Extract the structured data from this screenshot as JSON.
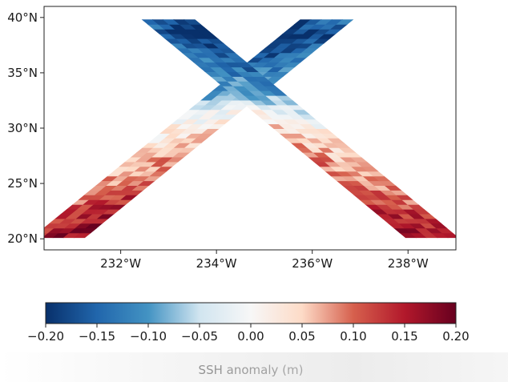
{
  "chart_data": [
    {
      "type": "heatmap",
      "title": "",
      "xlabel": "",
      "ylabel": "",
      "xlim": [
        230.4,
        239.0
      ],
      "ylim": [
        19.0,
        41.0
      ],
      "x_ticks": [
        {
          "value": 232,
          "label": "232°W"
        },
        {
          "value": 234,
          "label": "234°W"
        },
        {
          "value": 236,
          "label": "236°W"
        },
        {
          "value": 238,
          "label": "238°W"
        }
      ],
      "y_ticks": [
        {
          "value": 20,
          "label": "20°N"
        },
        {
          "value": 25,
          "label": "25°N"
        },
        {
          "value": 30,
          "label": "30°N"
        },
        {
          "value": 35,
          "label": "35°N"
        },
        {
          "value": 40,
          "label": "40°N"
        }
      ],
      "grid": false,
      "swaths": [
        {
          "start": [
            230.7,
            20.1
          ],
          "end": [
            236.3,
            39.8
          ],
          "half_width_deg": 0.55
        },
        {
          "start": [
            238.5,
            20.1
          ],
          "end": [
            233.0,
            39.8
          ],
          "half_width_deg": 0.55
        }
      ],
      "ssh_profile": [
        {
          "lat": 20,
          "value": 0.17
        },
        {
          "lat": 22,
          "value": 0.14
        },
        {
          "lat": 24,
          "value": 0.11
        },
        {
          "lat": 26,
          "value": 0.08
        },
        {
          "lat": 28,
          "value": 0.06
        },
        {
          "lat": 30,
          "value": 0.03
        },
        {
          "lat": 31.5,
          "value": -0.02
        },
        {
          "lat": 33,
          "value": -0.09
        },
        {
          "lat": 35,
          "value": -0.12
        },
        {
          "lat": 37,
          "value": -0.16
        },
        {
          "lat": 38.5,
          "value": -0.19
        },
        {
          "lat": 40,
          "value": -0.14
        }
      ]
    },
    {
      "type": "colorbar",
      "label": "SSH anomaly (m)",
      "range": [
        -0.2,
        0.2
      ],
      "ticks": [
        {
          "value": -0.2,
          "label": "−0.20"
        },
        {
          "value": -0.15,
          "label": "−0.15"
        },
        {
          "value": -0.1,
          "label": "−0.10"
        },
        {
          "value": -0.05,
          "label": "−0.05"
        },
        {
          "value": 0.0,
          "label": "0.00"
        },
        {
          "value": 0.05,
          "label": "0.05"
        },
        {
          "value": 0.1,
          "label": "0.10"
        },
        {
          "value": 0.15,
          "label": "0.15"
        },
        {
          "value": 0.2,
          "label": "0.20"
        }
      ],
      "colors": [
        {
          "value": -0.2,
          "color": "#08306b"
        },
        {
          "value": -0.15,
          "color": "#2166ac"
        },
        {
          "value": -0.1,
          "color": "#4393c3"
        },
        {
          "value": -0.05,
          "color": "#d1e5f0"
        },
        {
          "value": 0.0,
          "color": "#f7f7f7"
        },
        {
          "value": 0.05,
          "color": "#fddbc7"
        },
        {
          "value": 0.1,
          "color": "#d6604d"
        },
        {
          "value": 0.15,
          "color": "#b2182b"
        },
        {
          "value": 0.2,
          "color": "#67001f"
        }
      ]
    }
  ]
}
